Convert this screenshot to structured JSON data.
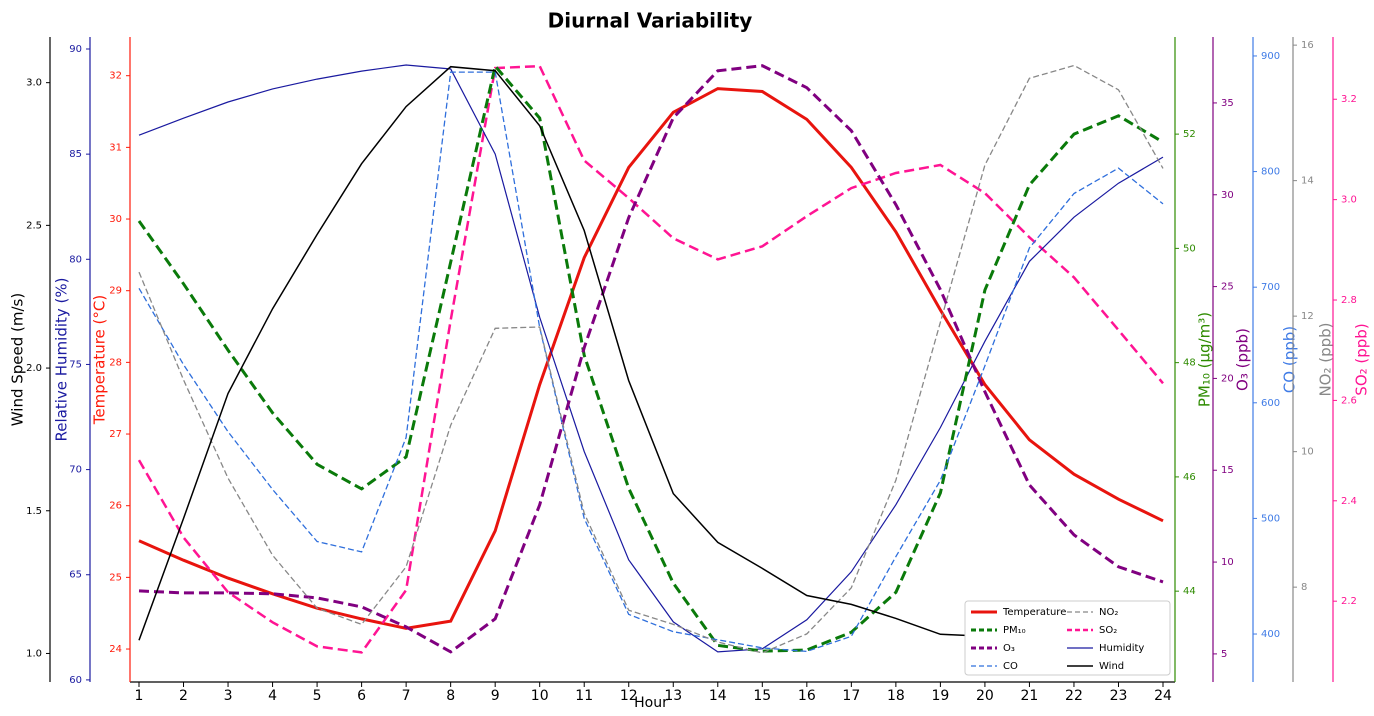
{
  "chart_data": {
    "type": "line",
    "title": "Diurnal Variability",
    "xlabel": "Hour",
    "x": [
      1,
      2,
      3,
      4,
      5,
      6,
      7,
      8,
      9,
      10,
      11,
      12,
      13,
      14,
      15,
      16,
      17,
      18,
      19,
      20,
      21,
      22,
      23,
      24
    ],
    "xlim": [
      0.8,
      24.2
    ],
    "xticks": [
      1,
      2,
      3,
      4,
      5,
      6,
      7,
      8,
      9,
      10,
      11,
      12,
      13,
      14,
      15,
      16,
      17,
      18,
      19,
      20,
      21,
      22,
      23,
      24
    ],
    "y_axes": [
      {
        "label": "Wind Speed (m/s)",
        "color": "#000000",
        "ylim": [
          0.9,
          3.16
        ],
        "yticks": [
          {
            "value": 1,
            "label": "1.0"
          },
          1.5,
          {
            "value": 2,
            "label": "2.0"
          },
          2.5,
          {
            "value": 3,
            "label": "3.0"
          }
        ],
        "series": {
          "name": "Wind",
          "color": "#000000",
          "style": "solid",
          "linewidth": 1.5,
          "values": [
            1.046,
            1.473,
            1.911,
            2.208,
            2.468,
            2.716,
            2.916,
            3.056,
            3.042,
            2.849,
            2.482,
            1.956,
            1.56,
            1.389,
            1.298,
            1.203,
            1.172,
            1.123,
            1.067,
            1.06,
            1.046,
            1.004,
            1.004,
            0.993
          ]
        }
      },
      {
        "label": "Relative Humidity (%)",
        "color": "#1a1aa0",
        "ylim": [
          59.9,
          90.57
        ],
        "yticks": [
          60,
          65,
          70,
          75,
          80,
          85,
          90
        ],
        "series": {
          "name": "Humidity",
          "color": "#1a1aa0",
          "style": "solid",
          "linewidth": 1.2,
          "values": [
            85.9,
            86.71,
            87.48,
            88.1,
            88.57,
            88.95,
            89.24,
            89.05,
            85.0,
            77.24,
            70.86,
            65.71,
            62.76,
            61.33,
            61.48,
            62.86,
            65.14,
            68.33,
            72.0,
            76.1,
            79.9,
            82.0,
            83.62,
            84.86
          ]
        }
      },
      {
        "label": "Temperature (°C)",
        "color": "#ff1a0a",
        "ylim": [
          23.54,
          32.54
        ],
        "yticks": [
          24,
          25,
          26,
          27,
          28,
          29,
          30,
          31,
          32
        ],
        "series": {
          "name": "Temperature",
          "color": "#e8140e",
          "style": "solid",
          "linewidth": 3,
          "values": [
            25.51,
            25.24,
            24.99,
            24.77,
            24.57,
            24.42,
            24.29,
            24.39,
            25.65,
            27.69,
            29.46,
            30.72,
            31.49,
            31.82,
            31.78,
            31.39,
            30.72,
            29.82,
            28.73,
            27.69,
            26.92,
            26.44,
            26.09,
            25.79
          ]
        }
      },
      {
        "label": "PM₁₀ (μg/m³)",
        "color": "#2e8b00",
        "ylim": [
          42.41,
          53.7
        ],
        "yticks": [
          44,
          46,
          48,
          50,
          52
        ],
        "series": {
          "name": "PM₁₀",
          "color": "#0a7a0a",
          "style": "dashed",
          "linewidth": 3,
          "values": [
            50.48,
            49.38,
            48.22,
            47.12,
            46.22,
            45.79,
            46.35,
            49.76,
            53.19,
            52.28,
            48.13,
            45.8,
            44.14,
            43.05,
            42.95,
            42.97,
            43.28,
            43.98,
            45.72,
            49.27,
            51.11,
            52.0,
            52.32,
            51.86
          ]
        }
      },
      {
        "label": "O₃ (ppb)",
        "color": "#800080",
        "ylim": [
          3.47,
          38.59
        ],
        "yticks": [
          5,
          10,
          15,
          20,
          25,
          30,
          35
        ],
        "series": {
          "name": "O₃",
          "color": "#800080",
          "style": "dashed",
          "linewidth": 3,
          "values": [
            8.43,
            8.32,
            8.32,
            8.27,
            8.05,
            7.56,
            6.47,
            5.11,
            6.91,
            13.12,
            21.67,
            28.75,
            34.19,
            36.75,
            37.03,
            35.83,
            33.49,
            29.46,
            24.83,
            19.27,
            14.2,
            11.48,
            9.74,
            8.92
          ]
        }
      },
      {
        "label": "CO (ppb)",
        "color": "#3f7be6",
        "ylim": [
          358.5,
          916.4
        ],
        "yticks": [
          400,
          500,
          600,
          700,
          800,
          900
        ],
        "series": {
          "name": "CO",
          "color": "#2f6fdc",
          "style": "dashed",
          "linewidth": 1.3,
          "values": [
            699,
            633,
            575,
            525,
            480,
            471,
            570,
            886,
            886,
            665,
            500,
            417,
            402,
            395,
            388,
            385,
            398,
            467,
            533,
            632,
            734,
            781,
            803,
            772
          ]
        }
      },
      {
        "label": "NO₂ (ppb)",
        "color": "#888888",
        "ylim": [
          6.6,
          16.12
        ],
        "yticks": [
          8,
          10,
          12,
          14,
          16
        ],
        "series": {
          "name": "NO₂",
          "color": "#888888",
          "style": "dashed",
          "linewidth": 1.3,
          "values": [
            12.65,
            11.06,
            9.61,
            8.47,
            7.69,
            7.45,
            8.3,
            10.39,
            11.82,
            11.84,
            9.09,
            7.66,
            7.45,
            7.19,
            7.03,
            7.31,
            7.99,
            9.58,
            11.91,
            14.23,
            15.51,
            15.7,
            15.34,
            14.18
          ]
        }
      },
      {
        "label": "SO₂ (ppb)",
        "color": "#ff1493",
        "ylim": [
          2.039,
          3.324
        ],
        "yticks": [
          2.2,
          2.4,
          2.6,
          2.8,
          {
            "value": 3,
            "label": "3.0"
          },
          3.2
        ],
        "series": {
          "name": "SO₂",
          "color": "#ff1493",
          "style": "dashed",
          "linewidth": 2.5,
          "values": [
            2.481,
            2.327,
            2.218,
            2.158,
            2.11,
            2.098,
            2.222,
            2.76,
            3.262,
            3.266,
            3.078,
            3.003,
            2.923,
            2.881,
            2.907,
            2.967,
            3.023,
            3.053,
            3.069,
            3.013,
            2.925,
            2.845,
            2.74,
            2.634
          ]
        }
      }
    ]
  }
}
